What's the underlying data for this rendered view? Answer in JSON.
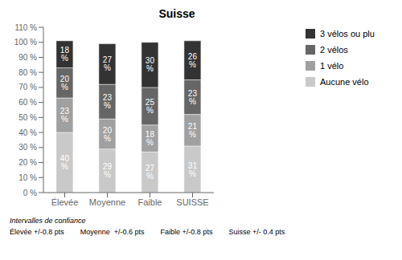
{
  "chart_data": {
    "type": "bar",
    "title": "Suisse",
    "categories": [
      "Élevée",
      "Moyenne",
      "Faible",
      "SUISSE"
    ],
    "series": [
      {
        "name": "Aucune vélo",
        "color": "#c9c9c9",
        "values": [
          40,
          29,
          27,
          31
        ],
        "value_labels": [
          "40 %",
          "29 %",
          "27 %",
          "31 %"
        ]
      },
      {
        "name": "1 vélo",
        "color": "#a0a0a0",
        "values": [
          23,
          20,
          18,
          21
        ],
        "value_labels": [
          "23 %",
          "20 %",
          "18 %",
          "21 %"
        ]
      },
      {
        "name": "2 vélos",
        "color": "#666666",
        "values": [
          20,
          23,
          25,
          23
        ],
        "value_labels": [
          "20 %",
          "23 %",
          "25 %",
          "23 %"
        ]
      },
      {
        "name": "3 vélos ou plu",
        "color": "#333333",
        "values": [
          18,
          27,
          30,
          26
        ],
        "value_labels": [
          "18 %",
          "27 %",
          "30 %",
          "26 %"
        ]
      }
    ],
    "ylim": [
      0,
      110
    ],
    "yticks": [
      {
        "value": 0,
        "label": "0 %"
      },
      {
        "value": 10,
        "label": "10 %"
      },
      {
        "value": 20,
        "label": "20 %"
      },
      {
        "value": 30,
        "label": "30 %"
      },
      {
        "value": 40,
        "label": "40 %"
      },
      {
        "value": 50,
        "label": "50 %"
      },
      {
        "value": 60,
        "label": "60 %"
      },
      {
        "value": 70,
        "label": "70 %"
      },
      {
        "value": 80,
        "label": "80 %"
      },
      {
        "value": 90,
        "label": "90 %"
      },
      {
        "value": 100,
        "label": "100 %"
      },
      {
        "value": 110,
        "label": "110 %"
      }
    ],
    "stacked": true,
    "data_labels": true,
    "grid": false,
    "legend": "right",
    "annotations": [
      "Intervalles de confiance",
      "Élevée +/-0.8 pts",
      "Moyenne  +/-0.6 pts",
      "Faible +/-0.8 pts",
      "Suisse +/- 0.4 pts"
    ]
  }
}
